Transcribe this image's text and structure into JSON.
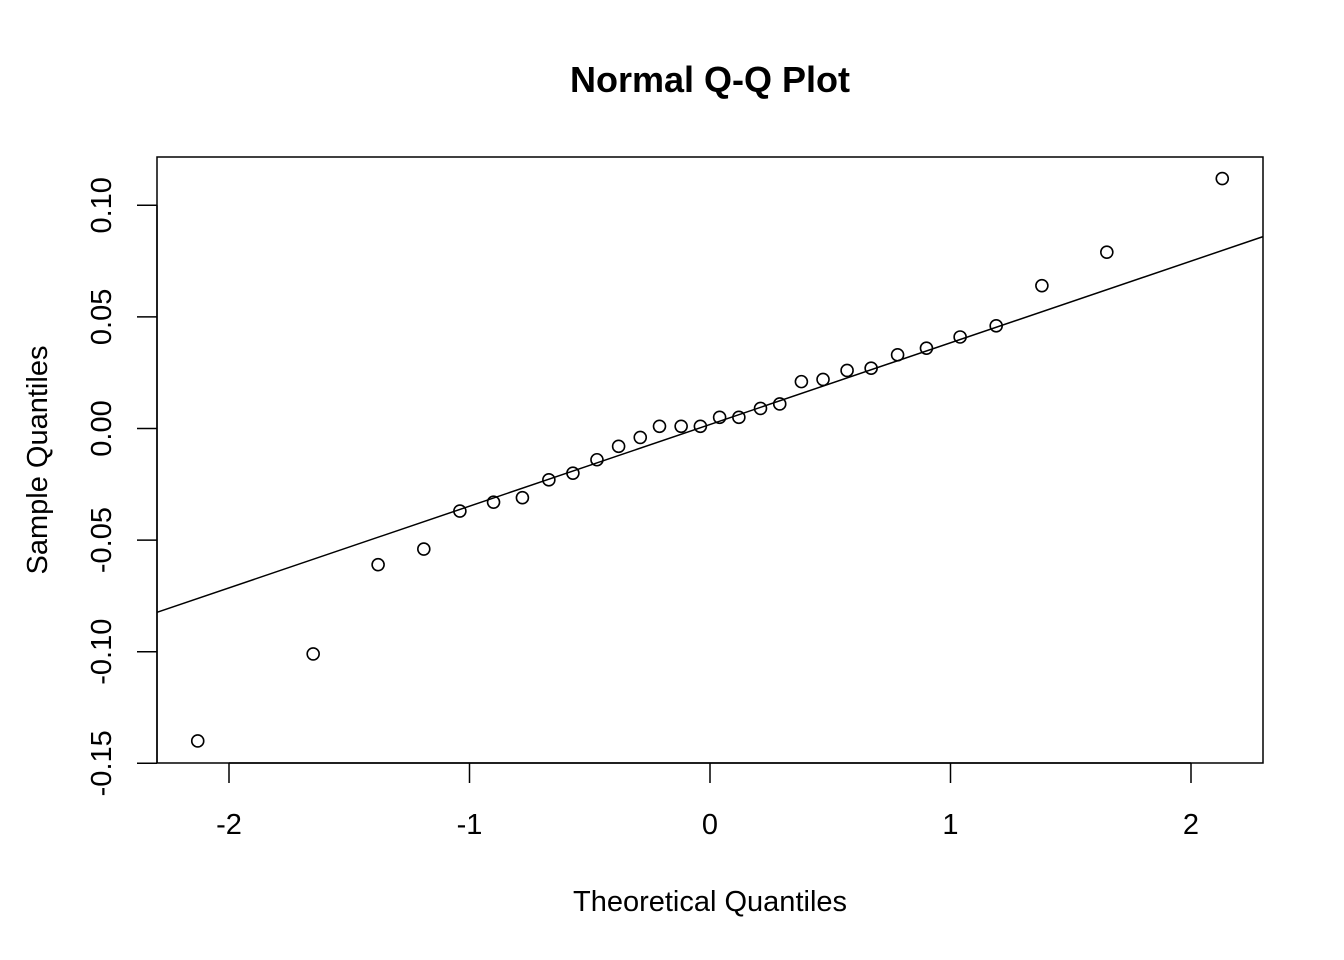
{
  "chart_data": {
    "type": "scatter",
    "title": "Normal Q-Q Plot",
    "xlabel": "Theoretical Quantiles",
    "ylabel": "Sample Quantiles",
    "xlim": [
      -2.3,
      2.3
    ],
    "ylim": [
      -0.15,
      0.12
    ],
    "xticks": [
      -2,
      -1,
      0,
      1,
      2
    ],
    "xtick_labels": [
      "-2",
      "-1",
      "0",
      "1",
      "2"
    ],
    "yticks": [
      -0.15,
      -0.1,
      -0.05,
      0.0,
      0.05,
      0.1
    ],
    "ytick_labels": [
      "-0.15",
      "-0.10",
      "-0.05",
      "0.00",
      "0.05",
      "0.10"
    ],
    "grid": false,
    "legend": "none",
    "points": [
      {
        "x": -2.13,
        "y": -0.14
      },
      {
        "x": -1.65,
        "y": -0.101
      },
      {
        "x": -1.38,
        "y": -0.061
      },
      {
        "x": -1.19,
        "y": -0.054
      },
      {
        "x": -1.04,
        "y": -0.037
      },
      {
        "x": -0.9,
        "y": -0.033
      },
      {
        "x": -0.78,
        "y": -0.031
      },
      {
        "x": -0.67,
        "y": -0.023
      },
      {
        "x": -0.57,
        "y": -0.02
      },
      {
        "x": -0.47,
        "y": -0.014
      },
      {
        "x": -0.38,
        "y": -0.008
      },
      {
        "x": -0.29,
        "y": -0.004
      },
      {
        "x": -0.21,
        "y": 0.001
      },
      {
        "x": -0.12,
        "y": 0.001
      },
      {
        "x": -0.04,
        "y": 0.001
      },
      {
        "x": 0.04,
        "y": 0.005
      },
      {
        "x": 0.12,
        "y": 0.005
      },
      {
        "x": 0.21,
        "y": 0.009
      },
      {
        "x": 0.29,
        "y": 0.011
      },
      {
        "x": 0.38,
        "y": 0.021
      },
      {
        "x": 0.47,
        "y": 0.022
      },
      {
        "x": 0.57,
        "y": 0.026
      },
      {
        "x": 0.67,
        "y": 0.027
      },
      {
        "x": 0.78,
        "y": 0.033
      },
      {
        "x": 0.9,
        "y": 0.036
      },
      {
        "x": 1.04,
        "y": 0.041
      },
      {
        "x": 1.19,
        "y": 0.046
      },
      {
        "x": 1.38,
        "y": 0.064
      },
      {
        "x": 1.65,
        "y": 0.079
      },
      {
        "x": 2.13,
        "y": 0.112
      }
    ],
    "reference_line": {
      "intercept": 0.0018,
      "slope": 0.0366
    }
  }
}
